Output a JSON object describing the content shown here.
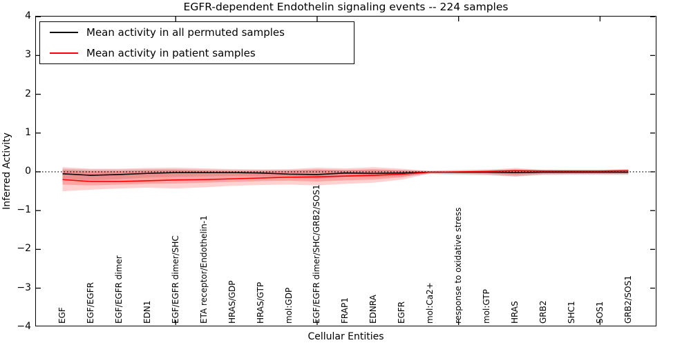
{
  "title": "EGFR-dependent Endothelin signaling events -- 224 samples",
  "legend": {
    "items": [
      {
        "label": "Mean activity in all permuted samples",
        "color": "#000000"
      },
      {
        "label": "Mean activity in patient samples",
        "color": "#ff0000"
      }
    ]
  },
  "axes": {
    "ylabel": "Inferred Activity",
    "xlabel": "Cellular Entities",
    "ytick_labels": [
      "4",
      "3",
      "2",
      "1",
      "0",
      "−1",
      "−2",
      "−3",
      "−4"
    ],
    "ytick_values": [
      4,
      3,
      2,
      1,
      0,
      -1,
      -2,
      -3,
      -4
    ]
  },
  "chart_data": {
    "type": "line",
    "title": "EGFR-dependent Endothelin signaling events -- 224 samples",
    "xlabel": "Cellular Entities",
    "ylabel": "Inferred Activity",
    "ylim": [
      -4,
      4
    ],
    "grid": false,
    "legend_position": "upper left",
    "categories": [
      "EGF",
      "EGF/EGFR",
      "EGF/EGFR dimer",
      "EDN1",
      "EGF/EGFR dimer/SHC",
      "ETA receptor/Endothelin-1",
      "HRAS/GDP",
      "HRAS/GTP",
      "mol:GDP",
      "EGF/EGFR dimer/SHC/GRB2/SOS1",
      "FRAP1",
      "EDNRA",
      "EGFR",
      "mol:Ca2+",
      "response to oxidative stress",
      "mol:GTP",
      "HRAS",
      "GRB2",
      "SHC1",
      "SOS1",
      "GRB2/SOS1"
    ],
    "series": [
      {
        "name": "Mean activity in all permuted samples",
        "color": "#000000",
        "style": "solid",
        "values": [
          -0.05,
          -0.09,
          -0.07,
          -0.04,
          -0.02,
          -0.02,
          -0.02,
          -0.03,
          -0.06,
          -0.07,
          -0.03,
          -0.04,
          -0.03,
          -0.01,
          -0.01,
          -0.01,
          -0.02,
          -0.01,
          -0.01,
          -0.01,
          -0.01
        ]
      },
      {
        "name": "Mean activity in patient samples",
        "color": "#ff0000",
        "style": "solid",
        "values": [
          -0.2,
          -0.25,
          -0.25,
          -0.23,
          -0.21,
          -0.2,
          -0.18,
          -0.16,
          -0.14,
          -0.13,
          -0.11,
          -0.09,
          -0.06,
          -0.01,
          0.0,
          0.01,
          0.03,
          0.02,
          0.02,
          0.02,
          0.03
        ]
      }
    ],
    "bands": [
      {
        "name": "permuted-samples-range",
        "color": "rgba(0,0,0,0.12)",
        "upper": [
          0.08,
          0.06,
          0.06,
          0.07,
          0.07,
          0.06,
          0.05,
          0.05,
          0.05,
          0.06,
          0.05,
          0.05,
          0.04,
          0.03,
          0.05,
          0.06,
          0.06,
          0.06,
          0.06,
          0.06,
          0.07
        ],
        "lower": [
          -0.18,
          -0.22,
          -0.19,
          -0.15,
          -0.13,
          -0.12,
          -0.11,
          -0.12,
          -0.16,
          -0.18,
          -0.13,
          -0.14,
          -0.12,
          -0.06,
          -0.08,
          -0.09,
          -0.12,
          -0.08,
          -0.08,
          -0.08,
          -0.08
        ]
      },
      {
        "name": "patient-samples-range-outer",
        "color": "rgba(255,0,0,0.18)",
        "upper": [
          0.12,
          0.08,
          0.08,
          0.1,
          0.11,
          0.09,
          0.07,
          0.06,
          0.07,
          0.11,
          0.09,
          0.12,
          0.08,
          0.02,
          0.03,
          0.05,
          0.1,
          0.05,
          0.04,
          0.04,
          0.06
        ],
        "lower": [
          -0.5,
          -0.46,
          -0.43,
          -0.41,
          -0.43,
          -0.4,
          -0.36,
          -0.34,
          -0.33,
          -0.35,
          -0.31,
          -0.28,
          -0.2,
          -0.04,
          -0.05,
          -0.07,
          -0.12,
          -0.07,
          -0.06,
          -0.06,
          -0.06
        ]
      },
      {
        "name": "patient-samples-range-inner",
        "color": "rgba(255,0,0,0.22)",
        "upper": [
          0.05,
          0.02,
          0.02,
          0.04,
          0.05,
          0.03,
          0.02,
          0.02,
          0.03,
          0.06,
          0.04,
          0.07,
          0.04,
          0.01,
          0.01,
          0.02,
          0.06,
          0.03,
          0.02,
          0.02,
          0.03
        ],
        "lower": [
          -0.33,
          -0.35,
          -0.33,
          -0.31,
          -0.3,
          -0.28,
          -0.26,
          -0.24,
          -0.23,
          -0.25,
          -0.22,
          -0.2,
          -0.14,
          -0.02,
          -0.03,
          -0.04,
          -0.08,
          -0.04,
          -0.04,
          -0.04,
          -0.04
        ]
      }
    ],
    "reference_line": {
      "y": 0,
      "style": "dotted",
      "color": "#000000"
    },
    "xticks_minor_positions": [
      5,
      10,
      15,
      20
    ]
  }
}
